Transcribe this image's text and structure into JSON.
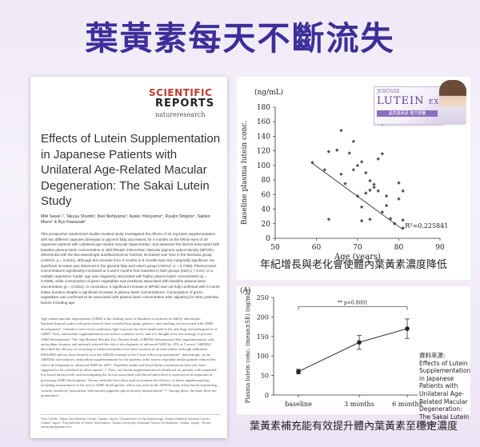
{
  "headline": "葉黃素每天不斷流失",
  "paper": {
    "journal_line1": "SCIENTIFIC",
    "journal_line2": "REPORTS",
    "publisher": "natureresearch",
    "title": "Effects of Lutein Supplementation in Japanese Patients with Unilateral Age-Related Macular Degeneration: The Sakai Lutein Study",
    "authors": "Miki Sawa¹˒², Takuya Shunto³, Itsei Nishiyama⁴, Ayako Yokoyama⁴, Ryujiro Shigeta⁴, Satoko Miura⁴ & Ryo Kawasaki²",
    "abstract": "This prospective randomized double-masked study investigated the effects of 20 mg lutein supplementation with two different capsules (beeswax or glycerol fatty acid esters) for 6 months on the fellow eyes of 39 Japanese patients with unilateral age-related macular degeneration, and assessed the factors associated with baseline plasma lutein concentration or with lifestyle intervention. Macular pigment optical density (MPOD), determined with the two-wavelength autofluorescence method, increased over time in the beeswax group (ANOVA, p = 0.0421), although the increase from 3 months to 6 months was only marginally significant. No significant increase was observed in the glycerol fatty acid esters group (ANOVA, p = 0.7386). Plasma lutein concentrations significantly increased at 3 and 6 months from baseline in both groups (both p < 0.01). In a multiple regression model, age was negatively associated with higher plasma lutein concentration (p = 0.0308), while consumption of green vegetables was positively associated with baseline plasma lutein concentration (p = 0.0322). In conclusion, a significant increase in MPOD was not fully confirmed with 6 month intake duration despite a significant increase in plasma lutein concentrations. Consumption of green vegetables was confirmed to be associated with plasma lutein concentration after adjusting for other potential factors including age.",
    "body": "Age-related macular degeneration (AMD) is the leading cause of blindness worldwide in elderly individuals. Epidemiological studies and gene research have revealed that aging, genetics, and smoking are associated with AMD development¹. Oxidative stress from continuous light exposure has been implicated in the aetiology and pathogenesis of AMD². Thus, antioxidant supplementation can reduce oxidative stress, and it is thought to be one strategy to prevent AMD development³. The Age-Related Macular Eye Disease Study (AREDS) demonstrated that supplementation with antioxidant vitamins and minerals reduced the risk of development of advanced AMD by 25% at 5 years⁴. AREDS2 described the efficacy of switching to lutein/zeaxanthin from beta-carotene as an antioxidant, although additional DHA/EPA did not show benefits over the AREDS formula at the 5-year follow-up assessment⁵. Interestingly, in the AREDS2 sub-analyses, antioxidant supplementation for the patients in the lowest vegetable intake quintile reduced the risk of development to advanced AMD by 26%⁶. Vegetable intake and blood lutein concentration have also been suggested to be correlated in other reports⁷˒⁸. Thus, oral lutein supplementation is beneficial for patients with suspected low blood lutein levels, and investigating the factors associated with blood lutein level is expected to be important in preventing AMD development. Various methods have been used to examine the efficacy of lutein supplementation, including measurement of the rate of AMD development, which was used in the AREDS study, blood lutein monitoring, contrast sensitivity assessment, and macular pigment optical density measurement⁹⁻¹³. Among these, the latter three are quantitative",
    "footnote": "¹Eye Center, Sakai City Medical Center, Osaka, Japan. ²Department of Ophthalmology, Osaka Habikino Medical Center, Osaka, Japan. ³Department of Vision Informatics, Osaka University Graduate School of Medicine, Osaka, Japan. *email: sawamiki@gmail.com"
  },
  "product": {
    "brand": "JERÖSSE",
    "name": "LUTEIN",
    "suffix": "EX",
    "strip": "晶亮葉黃素 複方膠囊"
  },
  "caption_top": "年紀增長與老化會使體內葉黃素濃度降低",
  "caption_bottom": "葉黃素補充能有效提升體內葉黃素至穩定濃度",
  "source": {
    "label": "資料來源:",
    "text": "Effects of Lutein Supplementation in Japanese Patients with Unilateral Age-Related Macular Degeneration: The Sakai Lutein Study"
  },
  "chart_data": [
    {
      "type": "scatter",
      "unit_label": "(ng/mL)",
      "xlabel": "Age (years)",
      "ylabel": "Baseline plasma lutein conc.",
      "xlim": [
        50,
        90
      ],
      "ylim": [
        0,
        180
      ],
      "xticks": [
        50,
        60,
        70,
        80,
        90
      ],
      "yticks": [
        0,
        20,
        40,
        60,
        80,
        100,
        120,
        140,
        160,
        180
      ],
      "annotation": "R²=0.225841",
      "trendline": {
        "x": [
          59,
          81
        ],
        "y": [
          103,
          12
        ]
      },
      "points": [
        {
          "x": 59,
          "y": 104
        },
        {
          "x": 62,
          "y": 94
        },
        {
          "x": 63,
          "y": 119
        },
        {
          "x": 65,
          "y": 121
        },
        {
          "x": 66,
          "y": 148
        },
        {
          "x": 66,
          "y": 88
        },
        {
          "x": 67,
          "y": 75
        },
        {
          "x": 68,
          "y": 117
        },
        {
          "x": 69,
          "y": 133
        },
        {
          "x": 69,
          "y": 94
        },
        {
          "x": 70,
          "y": 100
        },
        {
          "x": 70,
          "y": 58
        },
        {
          "x": 71,
          "y": 105
        },
        {
          "x": 71,
          "y": 43
        },
        {
          "x": 71,
          "y": 24
        },
        {
          "x": 72,
          "y": 90
        },
        {
          "x": 72,
          "y": 62
        },
        {
          "x": 73,
          "y": 79
        },
        {
          "x": 73,
          "y": 66
        },
        {
          "x": 74,
          "y": 74
        },
        {
          "x": 74,
          "y": 70
        },
        {
          "x": 75,
          "y": 109
        },
        {
          "x": 75,
          "y": 65
        },
        {
          "x": 76,
          "y": 157
        },
        {
          "x": 76,
          "y": 116
        },
        {
          "x": 76,
          "y": 36
        },
        {
          "x": 77,
          "y": 58
        },
        {
          "x": 77,
          "y": 45
        },
        {
          "x": 78,
          "y": 27
        },
        {
          "x": 79,
          "y": 20
        },
        {
          "x": 80,
          "y": 76
        },
        {
          "x": 80,
          "y": 54
        },
        {
          "x": 81,
          "y": 65
        },
        {
          "x": 81,
          "y": 25
        },
        {
          "x": 81,
          "y": 14
        },
        {
          "x": 73,
          "y": 26
        },
        {
          "x": 63,
          "y": 26
        }
      ]
    },
    {
      "type": "line",
      "panel_label": "(A)",
      "ylabel": "Plasma lutein conc. (mean±SE) (ng/mL)",
      "ylim": [
        0,
        250
      ],
      "yticks": [
        0,
        50,
        100,
        150,
        200,
        250
      ],
      "categories": [
        "baseline",
        "3 months",
        "6 months"
      ],
      "values": [
        60,
        135,
        170
      ],
      "errors": [
        6,
        18,
        25
      ],
      "significance": "** p<0.0001"
    }
  ]
}
